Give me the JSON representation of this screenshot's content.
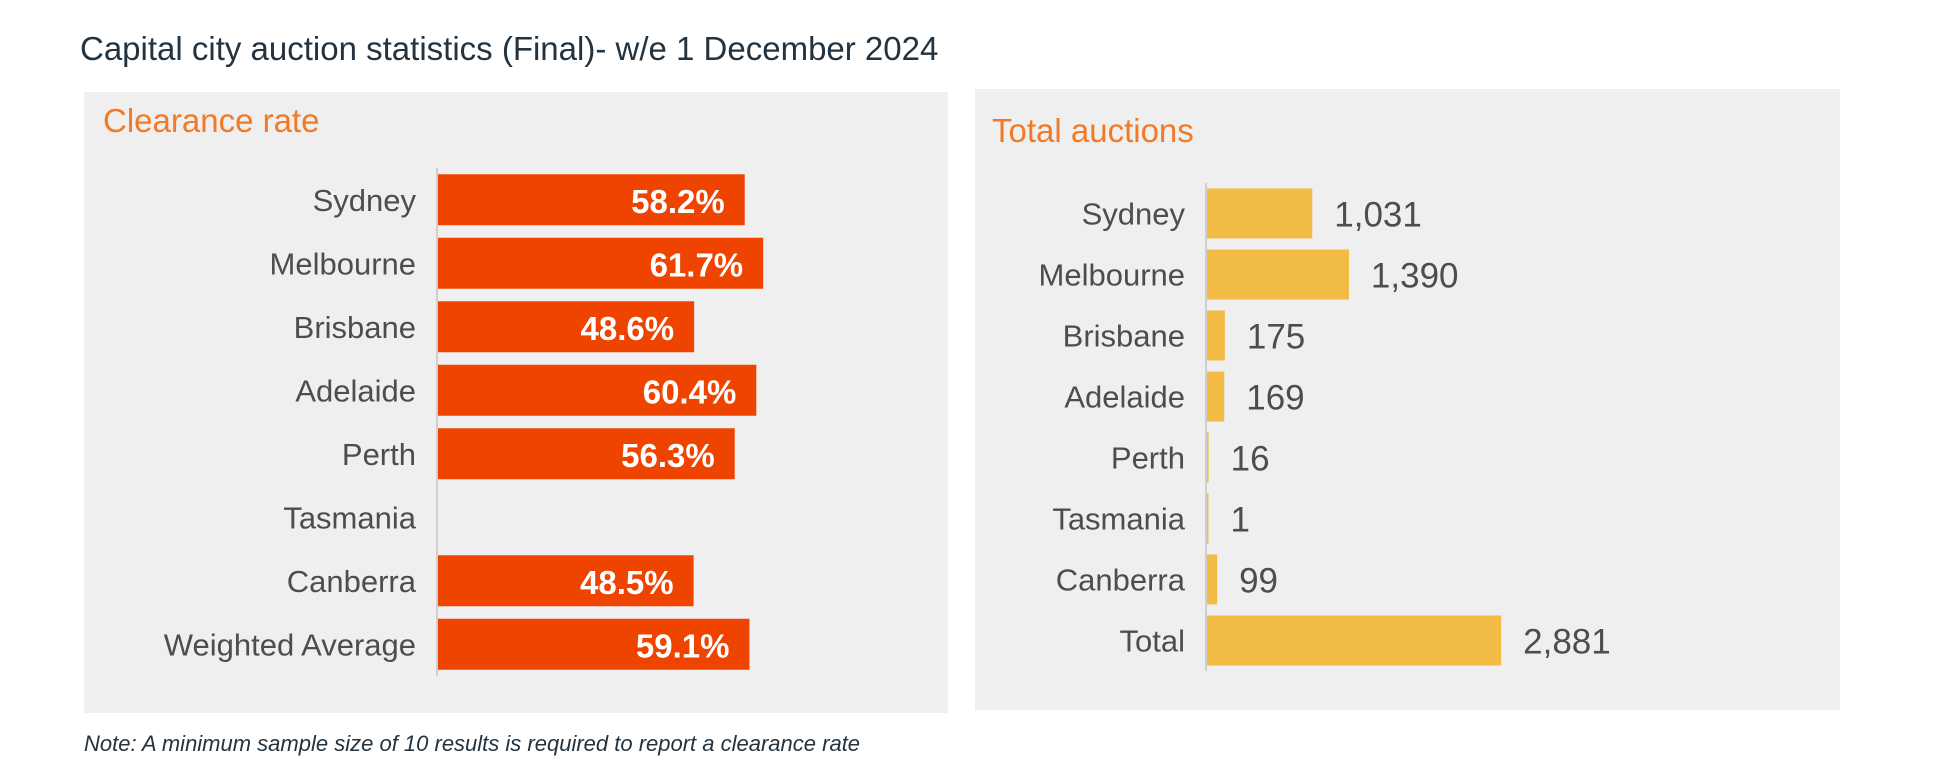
{
  "page": {
    "title": "Capital city auction statistics (Final)- w/e 1 December 2024",
    "note": "Note: A minimum sample size of 10 results is required to report a clearance rate"
  },
  "colors": {
    "clearance_bar": "#ee4400",
    "auctions_bar": "#f2bb44",
    "panel_bg": "#efeff0",
    "panel_title": "#f27a26",
    "label_text": "#4d4d4d",
    "title_text": "#233340"
  },
  "chart_data": [
    {
      "type": "bar",
      "orientation": "horizontal",
      "title": "Clearance rate",
      "categories": [
        "Sydney",
        "Melbourne",
        "Brisbane",
        "Adelaide",
        "Perth",
        "Tasmania",
        "Canberra",
        "Weighted Average"
      ],
      "values": [
        58.2,
        61.7,
        48.6,
        60.4,
        56.3,
        null,
        48.5,
        59.1
      ],
      "data_labels": [
        "58.2%",
        "61.7%",
        "48.6%",
        "60.4%",
        "56.3%",
        "",
        "48.5%",
        "59.1%"
      ],
      "xlim": [
        0,
        100
      ],
      "grid": false,
      "legend": "none",
      "label_position": "inside-end"
    },
    {
      "type": "bar",
      "orientation": "horizontal",
      "title": "Total auctions",
      "categories": [
        "Sydney",
        "Melbourne",
        "Brisbane",
        "Adelaide",
        "Perth",
        "Tasmania",
        "Canberra",
        "Total"
      ],
      "values": [
        1031,
        1390,
        175,
        169,
        16,
        1,
        99,
        2881
      ],
      "data_labels": [
        "1,031",
        "1,390",
        "175",
        "169",
        "16",
        "1",
        "99",
        "2,881"
      ],
      "xlim": [
        0,
        5700
      ],
      "grid": false,
      "legend": "none",
      "label_position": "outside-end"
    }
  ]
}
